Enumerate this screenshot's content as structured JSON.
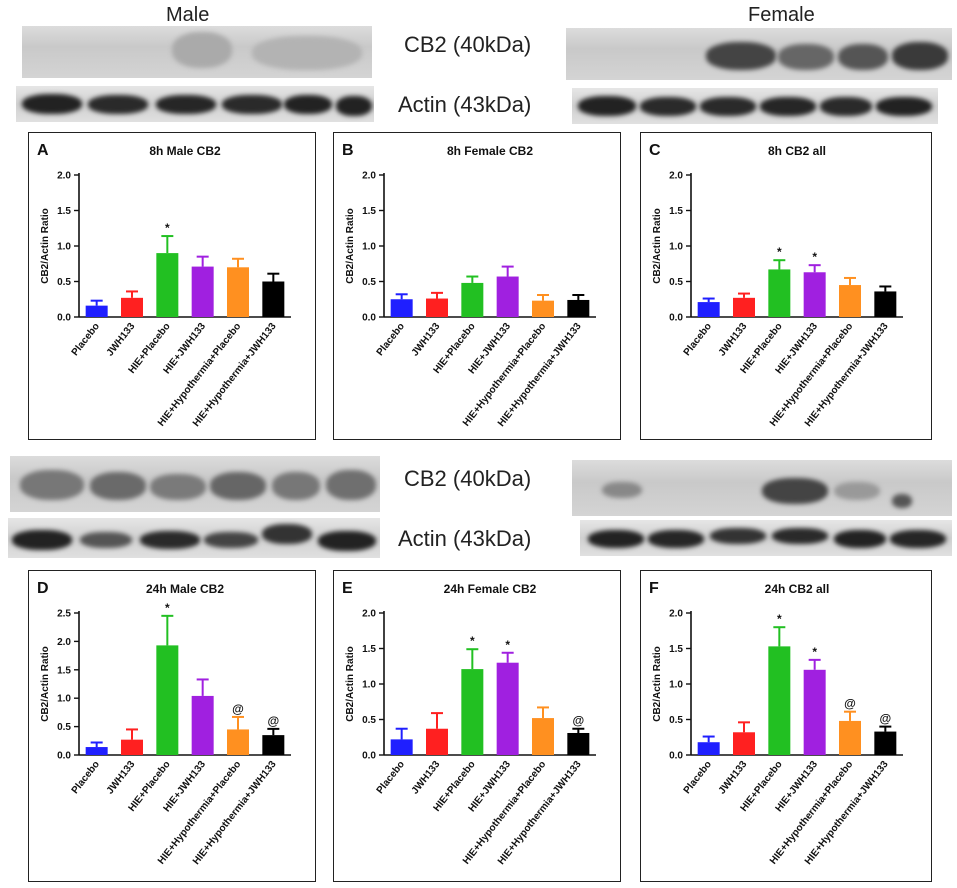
{
  "blots": {
    "male_label": "Male",
    "female_label": "Female",
    "top_cb2_label": "CB2 (40kDa)",
    "top_actin_label": "Actin (43kDa)",
    "bottom_cb2_label": "CB2 (40kDa)",
    "bottom_actin_label": "Actin (43kDa)"
  },
  "colors": {
    "Placebo": "#1f1fff",
    "JWH133": "#ff2020",
    "HIE+Placebo": "#22c022",
    "HIE+JWH133": "#a020e0",
    "HIE+Hypothermia+Placebo": "#ff9020",
    "HIE+Hypothermia+JWH133": "#000000"
  },
  "chart_data": [
    {
      "panel_letter": "A",
      "type": "bar",
      "title": "8h Male CB2",
      "ylabel": "CB2/Actin Ratio",
      "ylim": [
        0,
        2.0
      ],
      "yticks": [
        "0.0",
        "0.5",
        "1.0",
        "1.5",
        "2.0"
      ],
      "categories": [
        "Placebo",
        "JWH133",
        "HIE+Placebo",
        "HIE+JWH133",
        "HIE+Hypothermia+Placebo",
        "HIE+Hypothermia+JWH133"
      ],
      "values": [
        0.16,
        0.27,
        0.9,
        0.71,
        0.7,
        0.5
      ],
      "errors": [
        0.07,
        0.09,
        0.24,
        0.14,
        0.12,
        0.11
      ],
      "annotations": [
        "",
        "",
        "*",
        "",
        "",
        ""
      ]
    },
    {
      "panel_letter": "B",
      "type": "bar",
      "title": "8h Female CB2",
      "ylabel": "CB2/Actin Ratio",
      "ylim": [
        0,
        2.0
      ],
      "yticks": [
        "0.0",
        "0.5",
        "1.0",
        "1.5",
        "2.0"
      ],
      "categories": [
        "Placebo",
        "JWH133",
        "HIE+Placebo",
        "HIE+JWH133",
        "HIE+Hypothermia+Placebo",
        "HIE+Hypothermia+JWH133"
      ],
      "values": [
        0.25,
        0.26,
        0.48,
        0.57,
        0.23,
        0.24
      ],
      "errors": [
        0.07,
        0.08,
        0.09,
        0.14,
        0.08,
        0.07
      ],
      "annotations": [
        "",
        "",
        "",
        "",
        "",
        ""
      ]
    },
    {
      "panel_letter": "C",
      "type": "bar",
      "title": "8h CB2 all",
      "ylabel": "CB2/Actin Ratio",
      "ylim": [
        0,
        2.0
      ],
      "yticks": [
        "0.0",
        "0.5",
        "1.0",
        "1.5",
        "2.0"
      ],
      "categories": [
        "Placebo",
        "JWH133",
        "HIE+Placebo",
        "HIE+JWH133",
        "HIE+Hypothermia+Placebo",
        "HIE+Hypothermia+JWH133"
      ],
      "values": [
        0.21,
        0.27,
        0.67,
        0.63,
        0.45,
        0.36
      ],
      "errors": [
        0.05,
        0.06,
        0.13,
        0.1,
        0.1,
        0.07
      ],
      "annotations": [
        "",
        "",
        "*",
        "*",
        "",
        ""
      ]
    },
    {
      "panel_letter": "D",
      "type": "bar",
      "title": "24h Male CB2",
      "ylabel": "CB2/Actin Ratio",
      "ylim": [
        0,
        2.5
      ],
      "yticks": [
        "0.0",
        "0.5",
        "1.0",
        "1.5",
        "2.0",
        "2.5"
      ],
      "categories": [
        "Placebo",
        "JWH133",
        "HIE+Placebo",
        "HIE+JWH133",
        "HIE+Hypothermia+Placebo",
        "HIE+Hypothermia+JWH133"
      ],
      "values": [
        0.14,
        0.27,
        1.93,
        1.04,
        0.45,
        0.35
      ],
      "errors": [
        0.08,
        0.18,
        0.52,
        0.29,
        0.22,
        0.11
      ],
      "annotations": [
        "",
        "",
        "*",
        "",
        "@",
        "@"
      ]
    },
    {
      "panel_letter": "E",
      "type": "bar",
      "title": "24h Female CB2",
      "ylabel": "CB2/Actin Ratio",
      "ylim": [
        0,
        2.0
      ],
      "yticks": [
        "0.0",
        "0.5",
        "1.0",
        "1.5",
        "2.0"
      ],
      "categories": [
        "Placebo",
        "JWH133",
        "HIE+Placebo",
        "HIE+JWH133",
        "HIE+Hypothermia+Placebo",
        "HIE+Hypothermia+JWH133"
      ],
      "values": [
        0.22,
        0.37,
        1.21,
        1.3,
        0.52,
        0.31
      ],
      "errors": [
        0.15,
        0.22,
        0.28,
        0.14,
        0.15,
        0.06
      ],
      "annotations": [
        "",
        "",
        "*",
        "*",
        "",
        "@"
      ]
    },
    {
      "panel_letter": "F",
      "type": "bar",
      "title": "24h CB2 all",
      "ylabel": "CB2/Actin Ratio",
      "ylim": [
        0,
        2.0
      ],
      "yticks": [
        "0.0",
        "0.5",
        "1.0",
        "1.5",
        "2.0"
      ],
      "categories": [
        "Placebo",
        "JWH133",
        "HIE+Placebo",
        "HIE+JWH133",
        "HIE+Hypothermia+Placebo",
        "HIE+Hypothermia+JWH133"
      ],
      "values": [
        0.18,
        0.32,
        1.53,
        1.2,
        0.48,
        0.33
      ],
      "errors": [
        0.08,
        0.14,
        0.27,
        0.14,
        0.13,
        0.07
      ],
      "annotations": [
        "",
        "",
        "*",
        "*",
        "@",
        "@"
      ]
    }
  ]
}
